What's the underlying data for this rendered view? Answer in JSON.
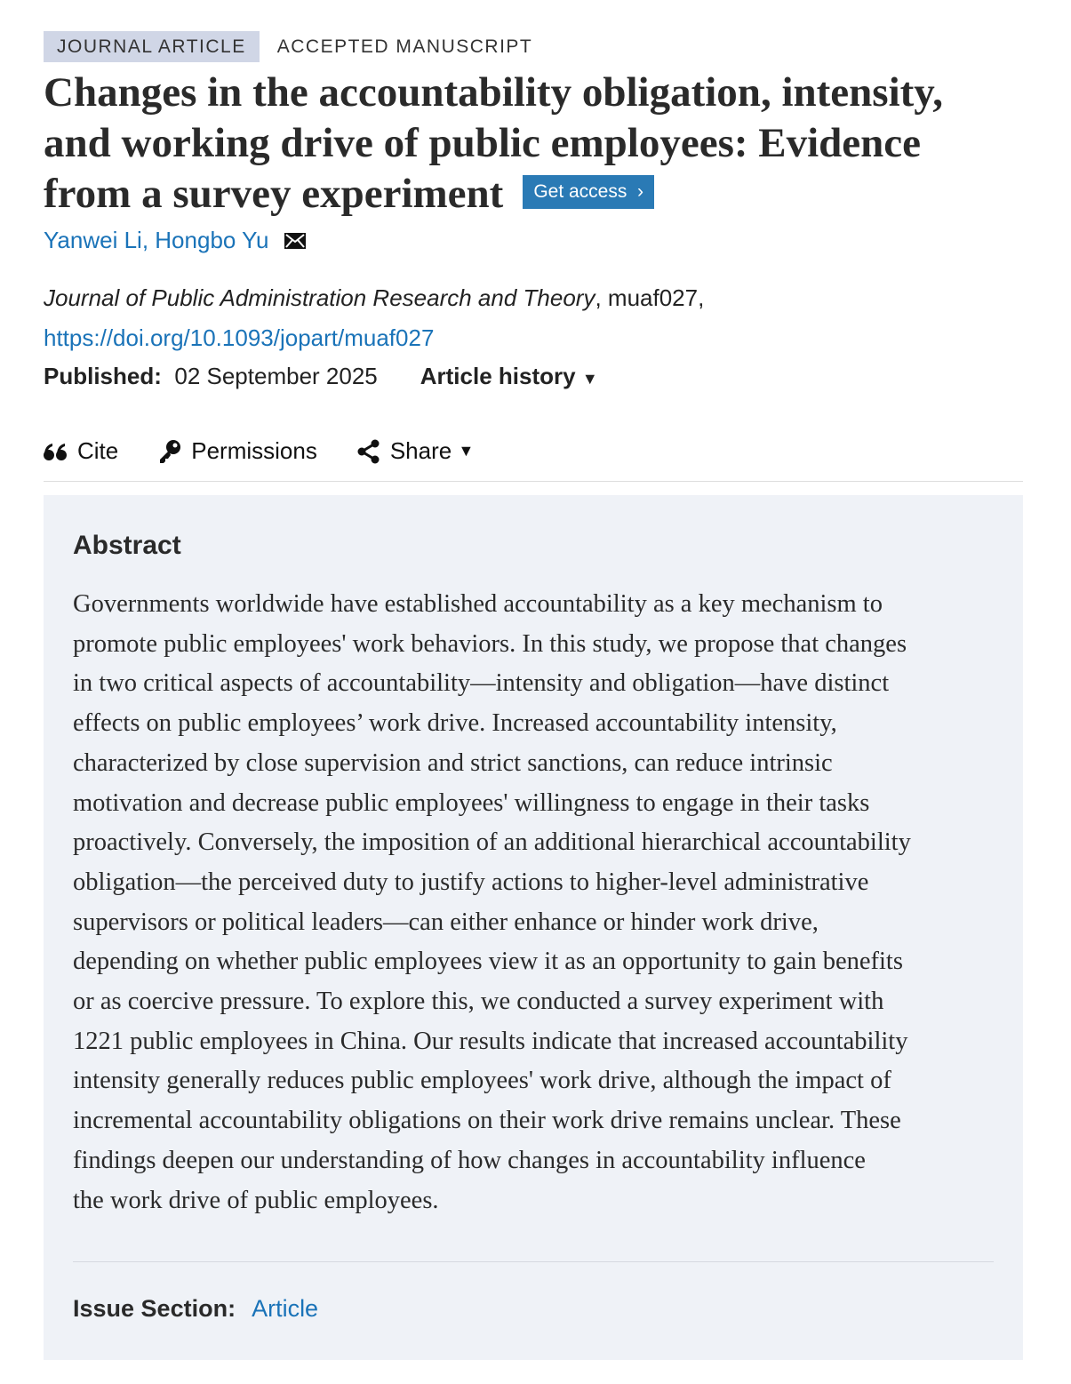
{
  "tags": {
    "type": "JOURNAL ARTICLE",
    "status": "ACCEPTED MANUSCRIPT"
  },
  "title_lines": [
    "Changes in the accountability obligation, intensity,",
    "and working drive of public employees: Evidence",
    "from a survey experiment"
  ],
  "get_access": {
    "label": "Get access",
    "icon": "chevron-right-icon",
    "color": "#2a7ab5"
  },
  "authors": [
    {
      "name": "Yanwei Li"
    },
    {
      "name": "Hongbo Yu"
    }
  ],
  "author_sep": ",",
  "journal": {
    "name": "Journal of Public Administration Research and Theory",
    "id": ", muaf027,"
  },
  "doi": "https://doi.org/10.1093/jopart/muaf027",
  "published": {
    "label": "Published:",
    "date": "02 September 2025"
  },
  "article_history": "Article history",
  "tools": {
    "cite": "Cite",
    "permissions": "Permissions",
    "share": "Share"
  },
  "abstract": {
    "heading": "Abstract",
    "lines": [
      "Governments worldwide have established accountability as a key mechanism to",
      "promote public employees' work behaviors. In this study, we propose that changes",
      "in two critical aspects of accountability—intensity and obligation—have distinct",
      "effects on public employees’ work drive. Increased accountability intensity,",
      "characterized by close supervision and strict sanctions, can reduce intrinsic",
      "motivation and decrease public employees' willingness to engage in their tasks",
      "proactively. Conversely, the imposition of an additional hierarchical accountability",
      "obligation—the perceived duty to justify actions to higher-level administrative",
      "supervisors or political leaders—can either enhance or hinder work drive,",
      "depending on whether public employees view it as an opportunity to gain benefits",
      "or as coercive pressure. To explore this, we conducted a survey experiment with",
      "1221 public employees in China. Our results indicate that increased accountability",
      "intensity generally reduces public employees' work drive, although the impact of",
      "incremental accountability obligations on their work drive remains unclear. These",
      "findings deepen our understanding of how changes in accountability influence",
      "the work drive of public employees."
    ]
  },
  "issue_section": {
    "label": "Issue Section:",
    "value": "Article"
  },
  "colors": {
    "link": "#1a73b8",
    "abstract_bg": "#eff2f7",
    "tag_bg": "#d0d6e6"
  }
}
